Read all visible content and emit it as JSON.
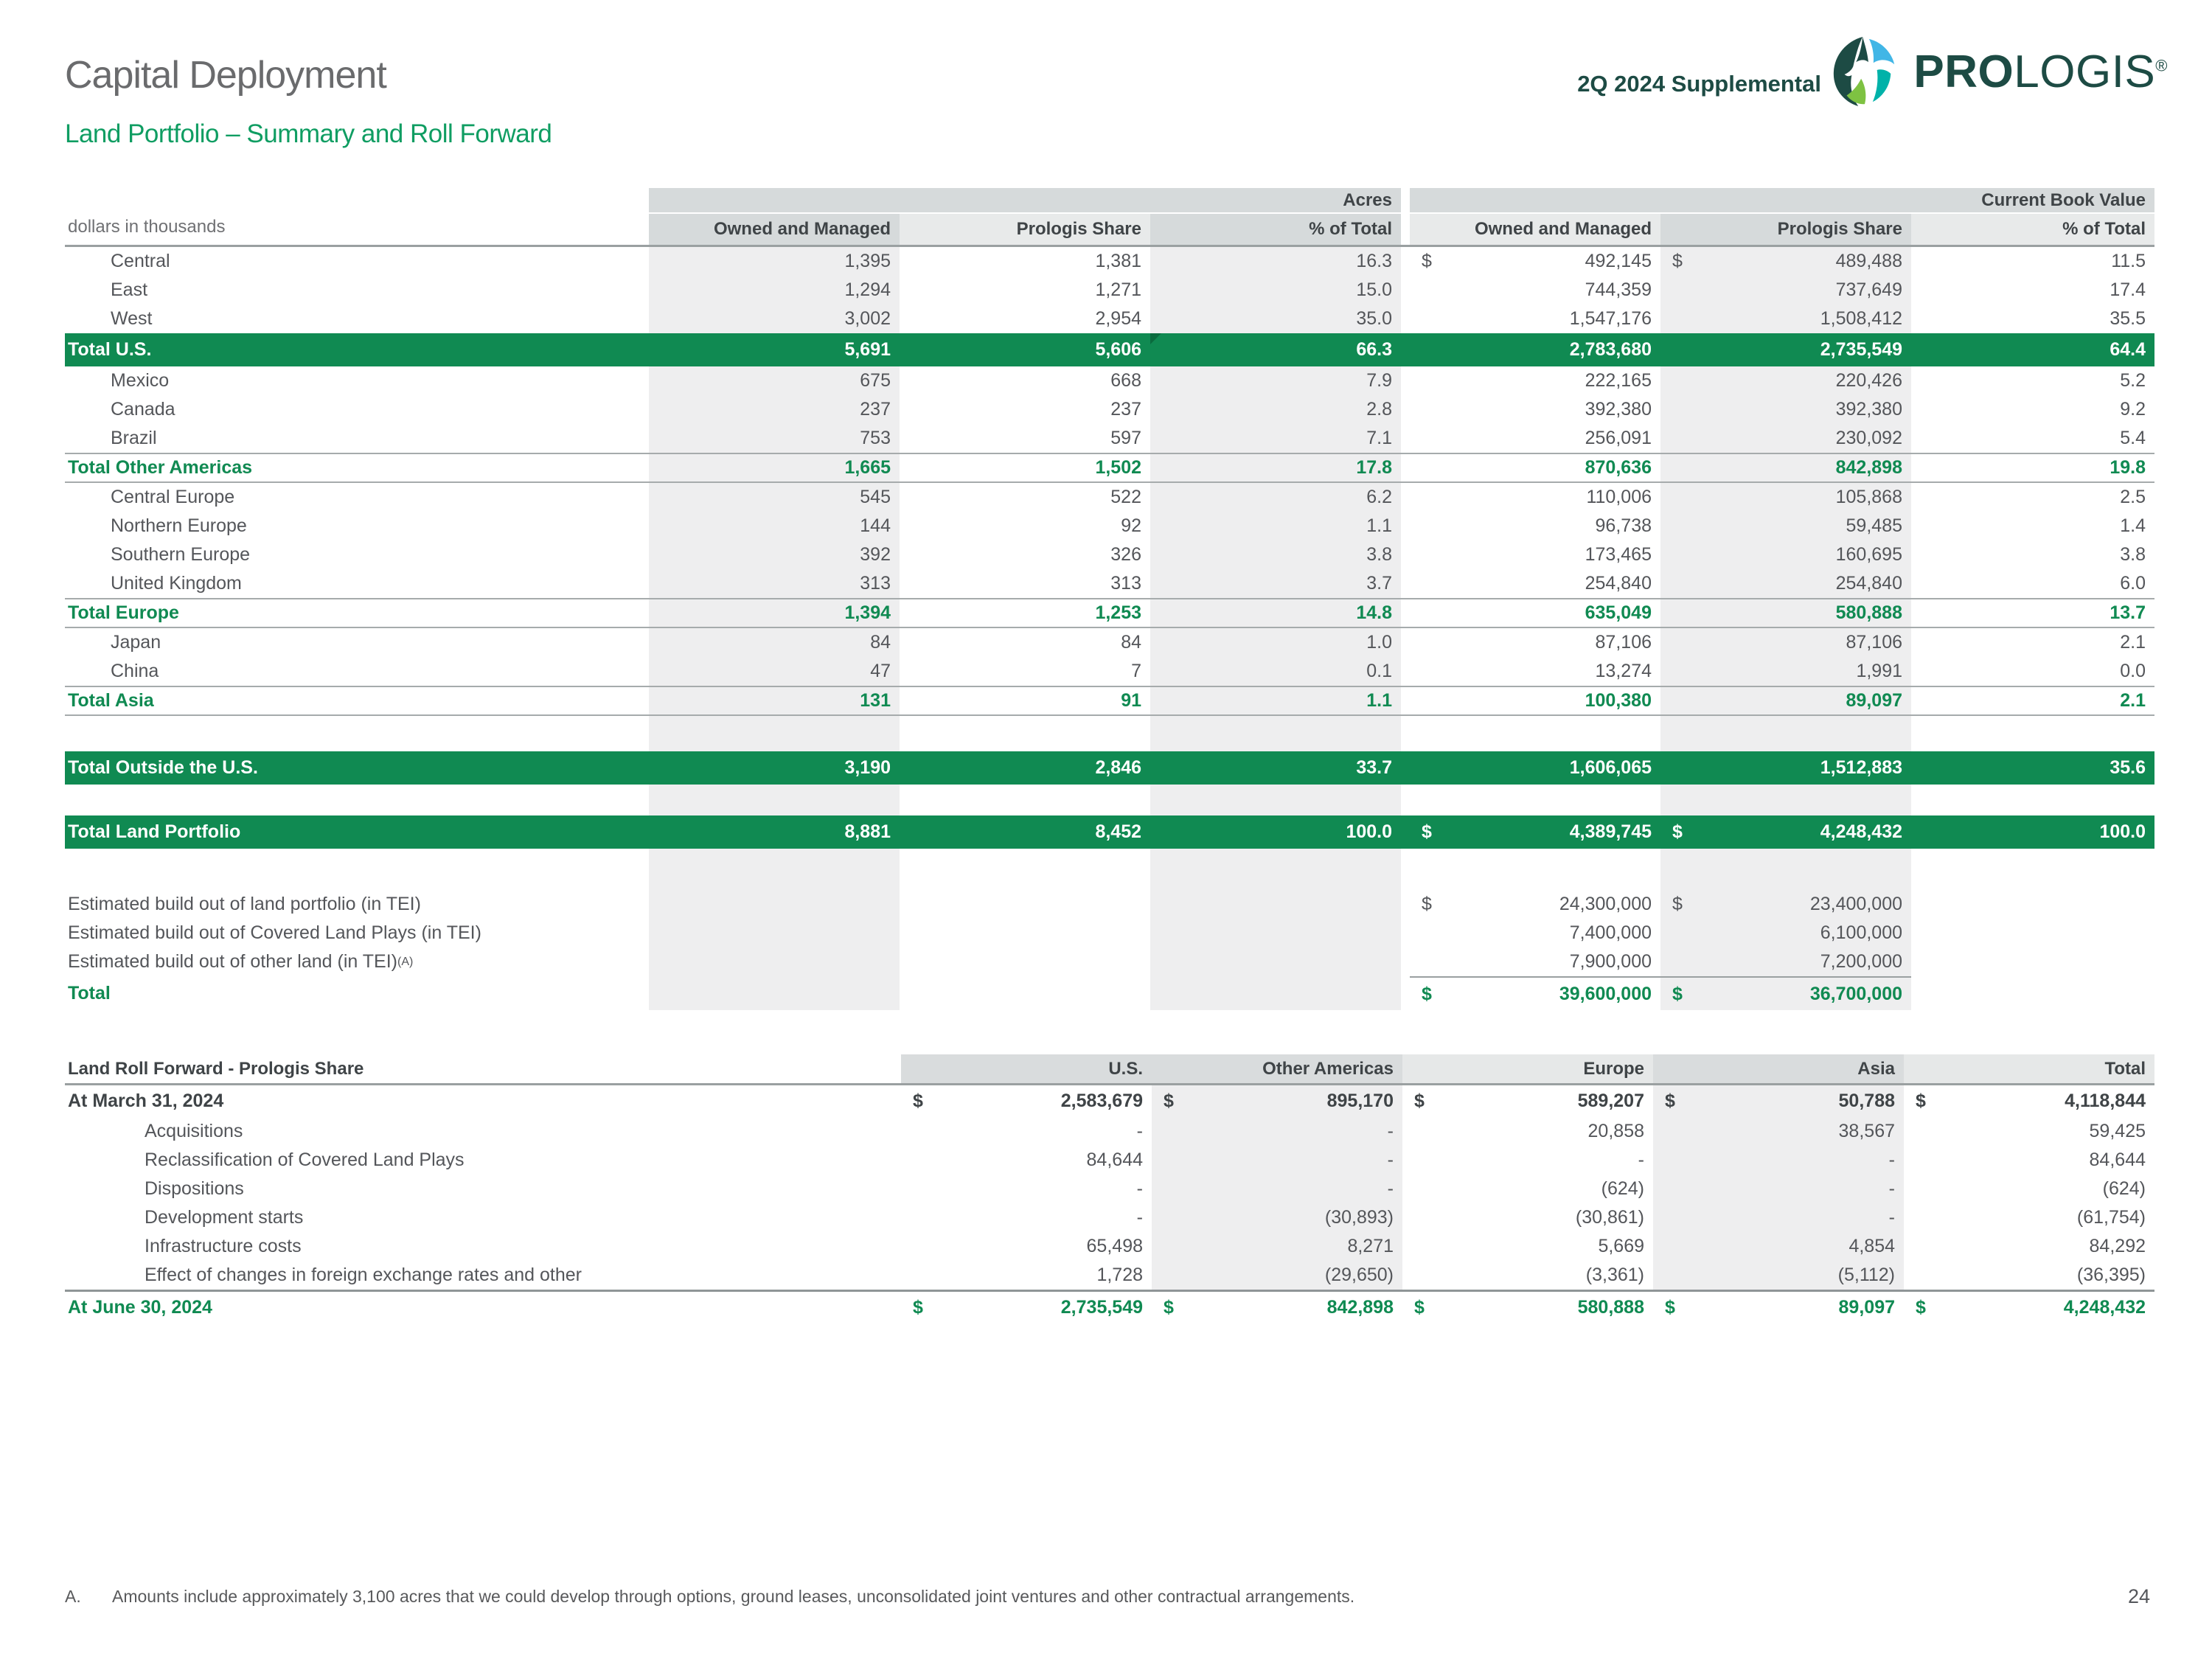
{
  "currency_symbol": "$",
  "header": {
    "title": "Capital Deployment",
    "subtitle": "Land Portfolio – Summary and Roll Forward",
    "supplemental": "2Q 2024 Supplemental",
    "brand_bold": "PRO",
    "brand_rest": "LOGIS",
    "brand_registered": "®"
  },
  "colors": {
    "bar_green": "#108a52",
    "accent_green": "#0f9d62",
    "brand_teal": "#1d4b44",
    "column_shade": "#eeeeef",
    "band_gray": "#d6dadb"
  },
  "table1": {
    "units_label": "dollars in thousands",
    "group_headers": [
      "Acres",
      "Current Book Value"
    ],
    "col_headers": [
      "Owned and Managed",
      "Prologis Share",
      "% of Total",
      "Owned and Managed",
      "Prologis Share",
      "% of Total"
    ],
    "rows": [
      {
        "type": "data",
        "indent": 1,
        "label": "Central",
        "values": [
          "1,395",
          "1,381",
          "16.3",
          "492,145",
          "489,488",
          "11.5"
        ],
        "dollars": [
          3,
          4
        ]
      },
      {
        "type": "data",
        "indent": 1,
        "label": "East",
        "values": [
          "1,294",
          "1,271",
          "15.0",
          "744,359",
          "737,649",
          "17.4"
        ]
      },
      {
        "type": "data",
        "indent": 1,
        "label": "West",
        "values": [
          "3,002",
          "2,954",
          "35.0",
          "1,547,176",
          "1,508,412",
          "35.5"
        ]
      },
      {
        "type": "bar",
        "label": "Total U.S.",
        "values": [
          "5,691",
          "5,606",
          "66.3",
          "2,783,680",
          "2,735,549",
          "64.4"
        ],
        "flag": 2
      },
      {
        "type": "data",
        "indent": 1,
        "label": "Mexico",
        "values": [
          "675",
          "668",
          "7.9",
          "222,165",
          "220,426",
          "5.2"
        ]
      },
      {
        "type": "data",
        "indent": 1,
        "label": "Canada",
        "values": [
          "237",
          "237",
          "2.8",
          "392,380",
          "392,380",
          "9.2"
        ]
      },
      {
        "type": "data",
        "indent": 1,
        "label": "Brazil",
        "values": [
          "753",
          "597",
          "7.1",
          "256,091",
          "230,092",
          "5.4"
        ]
      },
      {
        "type": "total",
        "label": "Total Other Americas",
        "values": [
          "1,665",
          "1,502",
          "17.8",
          "870,636",
          "842,898",
          "19.8"
        ]
      },
      {
        "type": "data",
        "indent": 1,
        "label": "Central Europe",
        "values": [
          "545",
          "522",
          "6.2",
          "110,006",
          "105,868",
          "2.5"
        ]
      },
      {
        "type": "data",
        "indent": 1,
        "label": "Northern Europe",
        "values": [
          "144",
          "92",
          "1.1",
          "96,738",
          "59,485",
          "1.4"
        ]
      },
      {
        "type": "data",
        "indent": 1,
        "label": "Southern Europe",
        "values": [
          "392",
          "326",
          "3.8",
          "173,465",
          "160,695",
          "3.8"
        ]
      },
      {
        "type": "data",
        "indent": 1,
        "label": "United Kingdom",
        "values": [
          "313",
          "313",
          "3.7",
          "254,840",
          "254,840",
          "6.0"
        ]
      },
      {
        "type": "total",
        "label": "Total Europe",
        "values": [
          "1,394",
          "1,253",
          "14.8",
          "635,049",
          "580,888",
          "13.7"
        ]
      },
      {
        "type": "data",
        "indent": 1,
        "label": "Japan",
        "values": [
          "84",
          "84",
          "1.0",
          "87,106",
          "87,106",
          "2.1"
        ]
      },
      {
        "type": "data",
        "indent": 1,
        "label": "China",
        "values": [
          "47",
          "7",
          "0.1",
          "13,274",
          "1,991",
          "0.0"
        ]
      },
      {
        "type": "total",
        "label": "Total Asia",
        "values": [
          "131",
          "91",
          "1.1",
          "100,380",
          "89,097",
          "2.1"
        ]
      },
      {
        "type": "spacer"
      },
      {
        "type": "bar",
        "label": "Total Outside the U.S.",
        "values": [
          "3,190",
          "2,846",
          "33.7",
          "1,606,065",
          "1,512,883",
          "35.6"
        ]
      },
      {
        "type": "spacer-sm"
      },
      {
        "type": "bar",
        "label": "Total Land Portfolio",
        "values": [
          "8,881",
          "8,452",
          "100.0",
          "4,389,745",
          "4,248,432",
          "100.0"
        ],
        "dollars": [
          3,
          4
        ]
      },
      {
        "type": "spacer-lg"
      },
      {
        "type": "data",
        "label": "Estimated build out of land portfolio (in TEI)",
        "values": [
          "",
          "",
          "",
          "24,300,000",
          "23,400,000",
          ""
        ],
        "dollars": [
          3,
          4
        ]
      },
      {
        "type": "data",
        "label": "Estimated build out of Covered Land Plays (in TEI)",
        "values": [
          "",
          "",
          "",
          "7,400,000",
          "6,100,000",
          ""
        ]
      },
      {
        "type": "data",
        "label": "Estimated build out of other land (in TEI)",
        "sup": "(A)",
        "values": [
          "",
          "",
          "",
          "7,900,000",
          "7,200,000",
          ""
        ]
      },
      {
        "type": "bo",
        "label": "Total",
        "values": [
          "",
          "",
          "",
          "39,600,000",
          "36,700,000",
          ""
        ],
        "dollars": [
          3,
          4
        ]
      }
    ]
  },
  "rollforward": {
    "title": "Land Roll Forward - Prologis Share",
    "col_headers": [
      "U.S.",
      "Other Americas",
      "Europe",
      "Asia",
      "Total"
    ],
    "rows": [
      {
        "type": "open",
        "label": "At March 31, 2024",
        "values": [
          "2,583,679",
          "895,170",
          "589,207",
          "50,788",
          "4,118,844"
        ],
        "dollars": [
          0,
          1,
          2,
          3,
          4
        ]
      },
      {
        "type": "data",
        "indent": 1,
        "label": "Acquisitions",
        "values": [
          "-",
          "-",
          "20,858",
          "38,567",
          "59,425"
        ]
      },
      {
        "type": "data",
        "indent": 1,
        "label": "Reclassification of Covered Land Plays",
        "values": [
          "84,644",
          "-",
          "-",
          "-",
          "84,644"
        ]
      },
      {
        "type": "data",
        "indent": 1,
        "label": "Dispositions",
        "values": [
          "-",
          "-",
          "(624)",
          "-",
          "(624)"
        ]
      },
      {
        "type": "data",
        "indent": 1,
        "label": "Development starts",
        "values": [
          "-",
          "(30,893)",
          "(30,861)",
          "-",
          "(61,754)"
        ]
      },
      {
        "type": "data",
        "indent": 1,
        "label": "Infrastructure costs",
        "values": [
          "65,498",
          "8,271",
          "5,669",
          "4,854",
          "84,292"
        ]
      },
      {
        "type": "data",
        "indent": 1,
        "label": "Effect of changes in foreign exchange rates and other",
        "values": [
          "1,728",
          "(29,650)",
          "(3,361)",
          "(5,112)",
          "(36,395)"
        ]
      },
      {
        "type": "close",
        "label": "At June 30, 2024",
        "values": [
          "2,735,549",
          "842,898",
          "580,888",
          "89,097",
          "4,248,432"
        ],
        "dollars": [
          0,
          1,
          2,
          3,
          4
        ]
      }
    ]
  },
  "footnote": {
    "marker": "A.",
    "text": "Amounts include approximately 3,100 acres that we could develop through options, ground leases, unconsolidated joint ventures and other contractual arrangements."
  },
  "page_number": "24"
}
